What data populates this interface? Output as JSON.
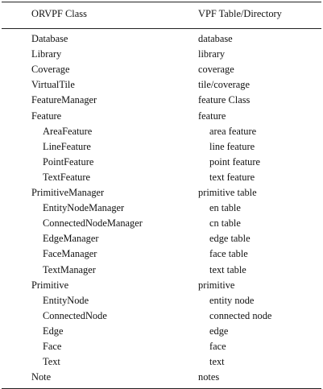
{
  "table": {
    "headers": [
      "ORVPF Class",
      "VPF Table/Directory"
    ],
    "rows": [
      {
        "orvpf": "Database",
        "vpf": "database",
        "indent": false
      },
      {
        "orvpf": "Library",
        "vpf": "library",
        "indent": false
      },
      {
        "orvpf": "Coverage",
        "vpf": "coverage",
        "indent": false
      },
      {
        "orvpf": "VirtualTile",
        "vpf": "tile/coverage",
        "indent": false
      },
      {
        "orvpf": "FeatureManager",
        "vpf": "feature Class",
        "indent": false
      },
      {
        "orvpf": "Feature",
        "vpf": "feature",
        "indent": false
      },
      {
        "orvpf": "AreaFeature",
        "vpf": "area feature",
        "indent": true
      },
      {
        "orvpf": "LineFeature",
        "vpf": "line feature",
        "indent": true
      },
      {
        "orvpf": "PointFeature",
        "vpf": "point feature",
        "indent": true
      },
      {
        "orvpf": "TextFeature",
        "vpf": "text feature",
        "indent": true
      },
      {
        "orvpf": "PrimitiveManager",
        "vpf": "primitive table",
        "indent": false
      },
      {
        "orvpf": "EntityNodeManager",
        "vpf": "en table",
        "indent": true
      },
      {
        "orvpf": "ConnectedNodeManager",
        "vpf": "cn table",
        "indent": true
      },
      {
        "orvpf": "EdgeManager",
        "vpf": "edge table",
        "indent": true
      },
      {
        "orvpf": "FaceManager",
        "vpf": "face table",
        "indent": true
      },
      {
        "orvpf": "TextManager",
        "vpf": "text table",
        "indent": true
      },
      {
        "orvpf": "Primitive",
        "vpf": "primitive",
        "indent": false
      },
      {
        "orvpf": "EntityNode",
        "vpf": "entity node",
        "indent": true
      },
      {
        "orvpf": "ConnectedNode",
        "vpf": "connected node",
        "indent": true
      },
      {
        "orvpf": "Edge",
        "vpf": "edge",
        "indent": true
      },
      {
        "orvpf": "Face",
        "vpf": "face",
        "indent": true
      },
      {
        "orvpf": "Text",
        "vpf": "text",
        "indent": true
      },
      {
        "orvpf": "Note",
        "vpf": "notes",
        "indent": false
      }
    ]
  }
}
